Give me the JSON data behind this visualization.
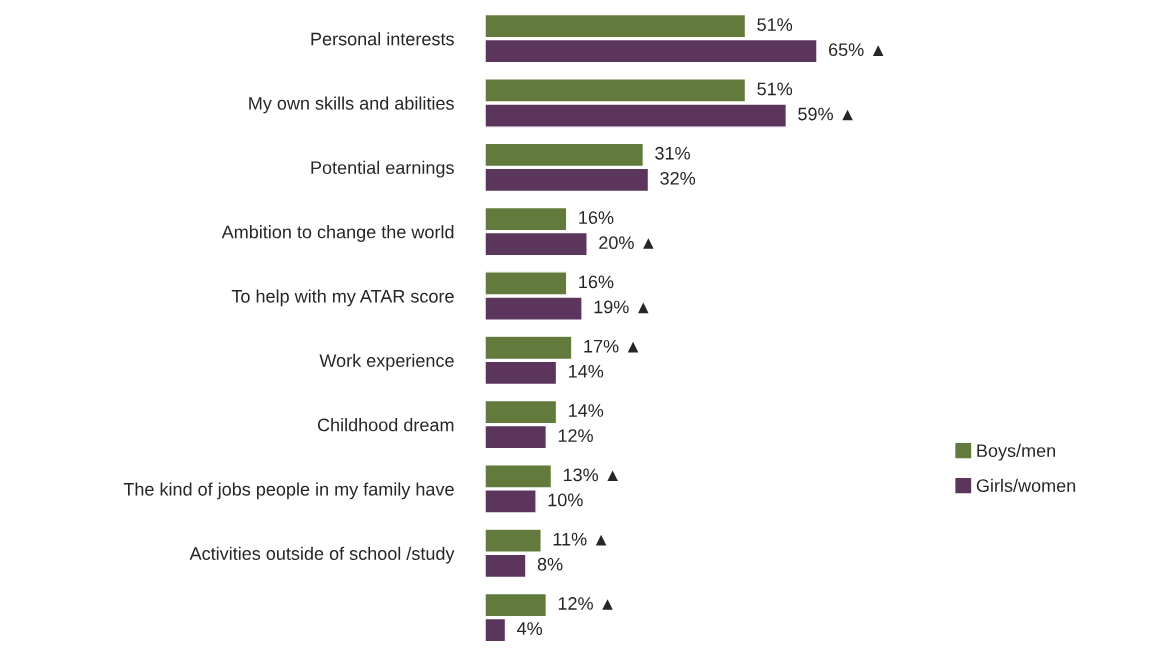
{
  "chart_data": {
    "type": "bar",
    "orientation": "horizontal",
    "tick_labels": "y",
    "legend": "right",
    "data_labels": true,
    "categories": [
      "Personal interests",
      "My own skills and abilities",
      "Potential earnings",
      "Ambition to change the world",
      "To help with my ATAR score",
      "Work experience",
      "Childhood dream",
      "The kind of jobs people in my family have",
      "Activities outside of school /study",
      null
    ],
    "series": [
      {
        "name": "Boys/men",
        "color": "#637a3d",
        "values": [
          51,
          51,
          31,
          16,
          16,
          17,
          14,
          13,
          11,
          12
        ],
        "value_labels": [
          "51%",
          "51%",
          "31%",
          "16%",
          "16%",
          "17% ▲",
          "14%",
          "13% ▲",
          "11% ▲",
          "12% ▲"
        ]
      },
      {
        "name": "Girls/women",
        "color": "#5c355c",
        "values": [
          65,
          59,
          32,
          20,
          19,
          14,
          12,
          10,
          8,
          4
        ],
        "value_labels": [
          "65% ▲",
          "59% ▲",
          "32%",
          "20% ▲",
          "19% ▲",
          "14%",
          "12%",
          "10%",
          "8%",
          "4%"
        ]
      }
    ]
  }
}
